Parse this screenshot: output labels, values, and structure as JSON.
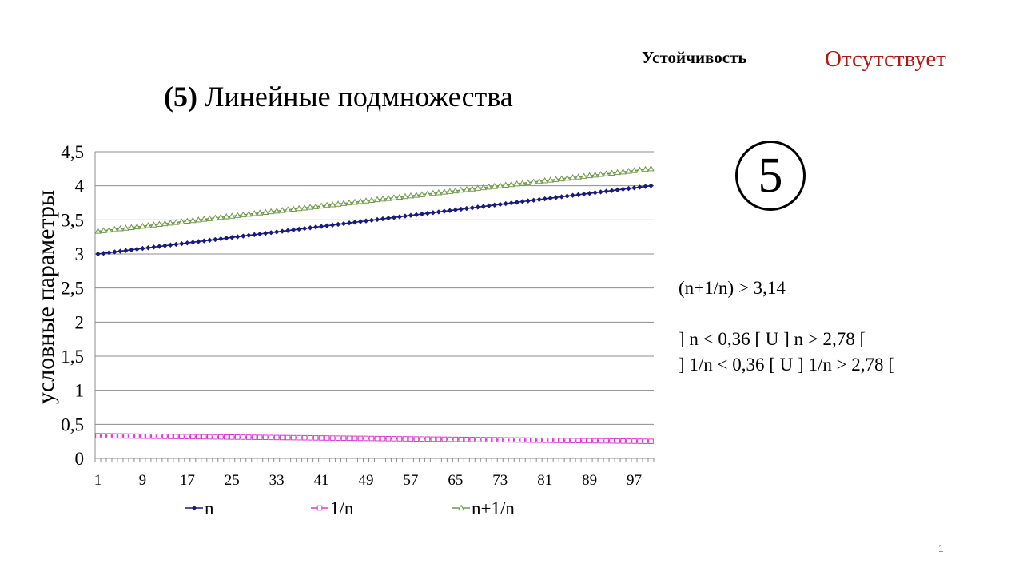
{
  "slide": {
    "title_number": "(5)",
    "title_text": "Линейные подмножества",
    "stability_label": "Устойчивость",
    "stability_value": "Отсутствует",
    "circled_number": "5",
    "condition": "(n+1/n) > 3,14",
    "interval_n": "]  n < 0,36 [ U ]  n > 2,78  [",
    "interval_inv": "]  1/n  < 0,36  [ U ]  1/n > 2,78 [",
    "page_number": "1"
  },
  "colors": {
    "n": "#1a1a7a",
    "inv": "#d63ad0",
    "sum": "#6e9a4a",
    "stability_value": "#b01818"
  },
  "chart_data": {
    "type": "line",
    "ylabel": "условные параметры",
    "xlabel": "",
    "ylim": [
      0,
      4.5
    ],
    "yticks": [
      "0",
      "0,5",
      "1",
      "1,5",
      "2",
      "2,5",
      "3",
      "3,5",
      "4",
      "4,5"
    ],
    "xtick_labels": [
      "1",
      "9",
      "17",
      "25",
      "33",
      "41",
      "49",
      "57",
      "65",
      "73",
      "81",
      "89",
      "97"
    ],
    "grid": true,
    "legend": "bottom",
    "x_start": 1,
    "x_end": 100,
    "series": [
      {
        "name": "n",
        "start": 3.0,
        "end": 4.0,
        "marker": "diamond"
      },
      {
        "name": "1/n",
        "start": 0.333,
        "end": 0.25,
        "marker": "square"
      },
      {
        "name": "n+1/n",
        "start": 3.333,
        "end": 4.25,
        "marker": "triangle"
      }
    ]
  }
}
